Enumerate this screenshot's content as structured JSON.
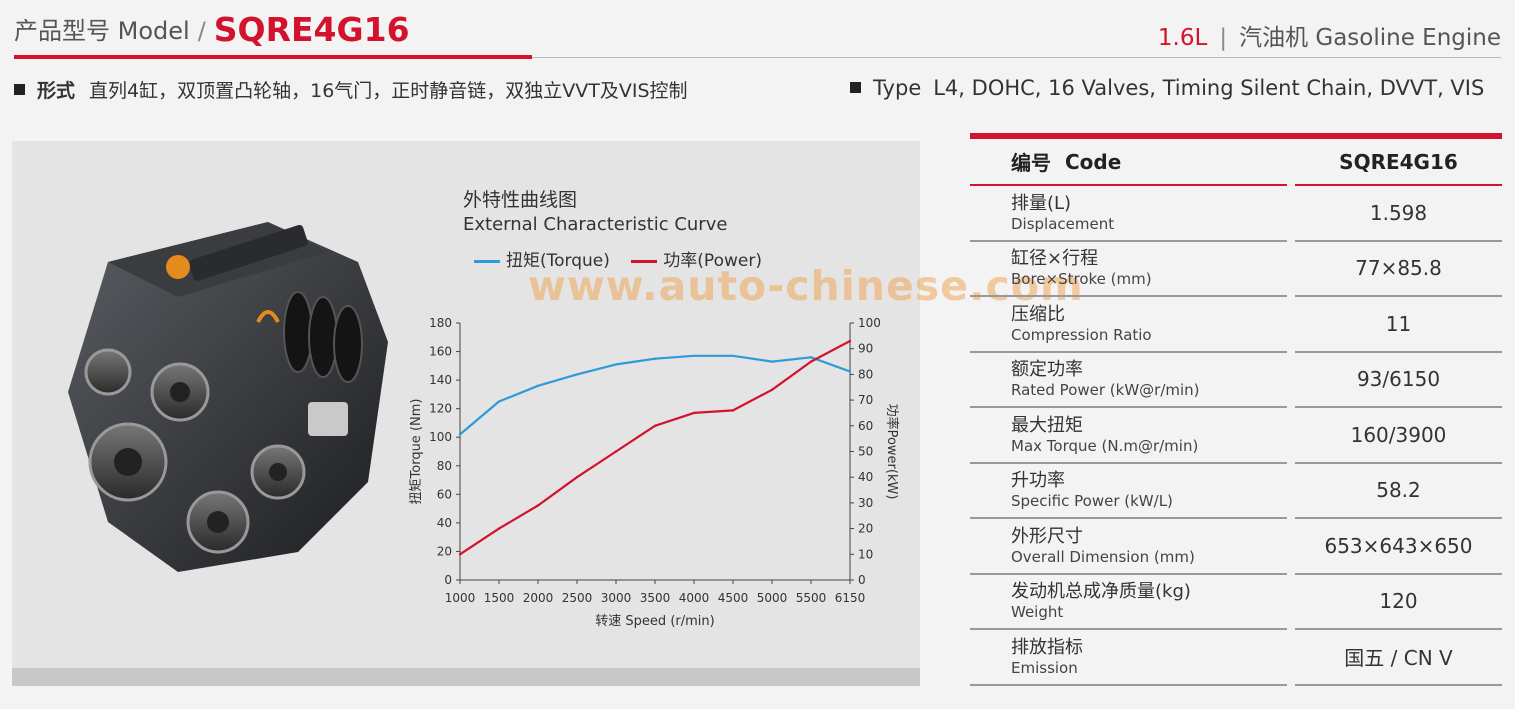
{
  "header": {
    "model_label": "产品型号 Model",
    "slash": "/",
    "model_code": "SQRE4G16",
    "displacement": "1.6L",
    "separator": "|",
    "engine_type": "汽油机 Gasoline Engine"
  },
  "type_line": {
    "cn_label": "形式",
    "cn_text": "直列4缸，双顶置凸轮轴，16气门，正时静音链，双独立VVT及VIS控制",
    "en_label": "Type",
    "en_text": "L4, DOHC, 16 Valves, Timing Silent Chain, DVVT, VIS"
  },
  "watermark": "www.auto-chinese.com",
  "chart_data": {
    "type": "line",
    "title": "外特性曲线图",
    "subtitle": "External Characteristic Curve",
    "x": [
      1000,
      1500,
      2000,
      2500,
      3000,
      3500,
      4000,
      4500,
      5000,
      5500,
      6150
    ],
    "x_labels": [
      "1000",
      "1500",
      "2000",
      "2500",
      "3000",
      "3500",
      "4000",
      "4500",
      "5000",
      "5500",
      "6150"
    ],
    "xlabel": "转速 Speed (r/min)",
    "ylabel_left": "扭矩Torque (Nm)",
    "ylabel_right": "功率Power(kW)",
    "ylim_left": [
      0,
      180
    ],
    "ylim_right": [
      0,
      100
    ],
    "yticks_left": [
      0,
      20,
      40,
      60,
      80,
      100,
      120,
      140,
      160,
      180
    ],
    "yticks_right": [
      0,
      10,
      20,
      30,
      40,
      50,
      60,
      70,
      80,
      90,
      100
    ],
    "grid": false,
    "legend_position": "top-left",
    "series": [
      {
        "name": "扭矩(Torque)",
        "axis": "left",
        "color": "#2e9ad8",
        "values": [
          102,
          125,
          136,
          144,
          151,
          155,
          157,
          157,
          153,
          156,
          146
        ]
      },
      {
        "name": "功率(Power)",
        "axis": "right",
        "color": "#d3122d",
        "values": [
          10,
          20,
          29,
          40,
          50,
          60,
          65,
          66,
          74,
          85,
          93
        ]
      }
    ]
  },
  "spec_table": {
    "header": {
      "cn": "编号",
      "en": "Code",
      "value": "SQRE4G16"
    },
    "rows": [
      {
        "cn": "排量(L)",
        "en": "Displacement",
        "value": "1.598"
      },
      {
        "cn": "缸径×行程",
        "en": "Bore×Stroke (mm)",
        "value": "77×85.8"
      },
      {
        "cn": "压缩比",
        "en": "Compression  Ratio",
        "value": "11"
      },
      {
        "cn": "额定功率",
        "en": "Rated  Power (kW@r/min)",
        "value": "93/6150"
      },
      {
        "cn": "最大扭矩",
        "en": "Max  Torque (N.m@r/min)",
        "value": "160/3900"
      },
      {
        "cn": "升功率",
        "en": "Specific Power (kW/L)",
        "value": "58.2"
      },
      {
        "cn": "外形尺寸",
        "en": "Overall  Dimension (mm)",
        "value": "653×643×650"
      },
      {
        "cn": "发动机总成净质量(kg)",
        "en": "Weight",
        "value": "120"
      },
      {
        "cn": "排放指标",
        "en": "Emission",
        "value": "国五 / CN V"
      }
    ]
  },
  "colors": {
    "accent": "#d3122d",
    "torque": "#2e9ad8",
    "power": "#d3122d"
  },
  "icons": [
    "engine-image"
  ]
}
